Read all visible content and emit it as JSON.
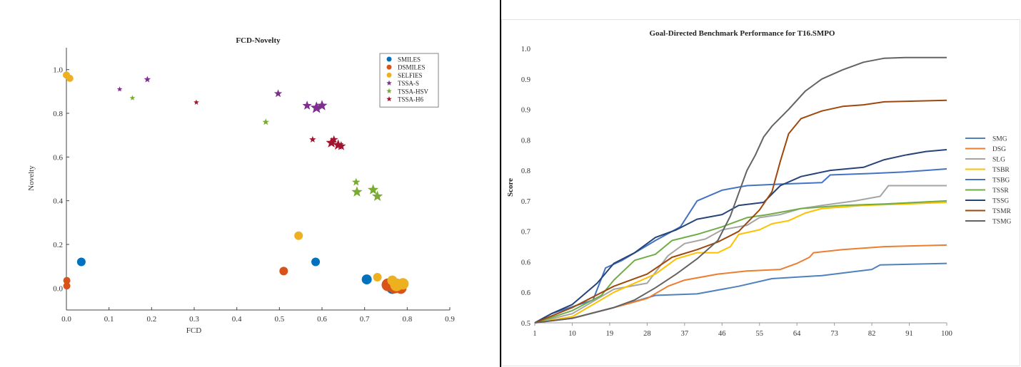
{
  "charts": [
    {
      "type": "scatter",
      "title": "FCD-Novelty",
      "xlabel": "FCD",
      "ylabel": "Novelty",
      "xlim": [
        0,
        0.9
      ],
      "ylim": [
        -0.1,
        1.1
      ],
      "xticks": [
        0,
        0.1,
        0.2,
        0.3,
        0.4,
        0.5,
        0.6,
        0.7,
        0.8,
        0.9
      ],
      "xtick_labels": [
        "0.0",
        "0.1",
        "0.2",
        "0.3",
        "0.4",
        "0.5",
        "0.6",
        "0.7",
        "0.8",
        "0.9"
      ],
      "yticks": [
        0.0,
        0.2,
        0.4,
        0.6,
        0.8,
        1.0
      ],
      "ytick_labels": [
        "0.0",
        "0.2",
        "0.4",
        "0.6",
        "0.8",
        "1.0"
      ],
      "grid": false,
      "legend": "top-right",
      "series": [
        {
          "name": "SMILES",
          "marker": "circle",
          "color": "#0072BD",
          "points": [
            [
              0.035,
              0.12,
              6
            ],
            [
              0.585,
              0.12,
              6
            ],
            [
              0.705,
              0.04,
              7
            ],
            [
              0.765,
              0.0,
              8
            ]
          ]
        },
        {
          "name": "DSMILES",
          "marker": "circle",
          "color": "#D95319",
          "points": [
            [
              0.001,
              0.035,
              5
            ],
            [
              0.001,
              0.01,
              5
            ],
            [
              0.51,
              0.078,
              6
            ],
            [
              0.755,
              0.015,
              9
            ],
            [
              0.77,
              0.005,
              9
            ],
            [
              0.785,
              0.0,
              8
            ]
          ]
        },
        {
          "name": "SELFIES",
          "marker": "circle",
          "color": "#EDB120",
          "points": [
            [
              0.0,
              0.975,
              5
            ],
            [
              0.008,
              0.96,
              5
            ],
            [
              0.545,
              0.24,
              6
            ],
            [
              0.73,
              0.05,
              6
            ],
            [
              0.765,
              0.035,
              7
            ],
            [
              0.775,
              0.015,
              9
            ],
            [
              0.79,
              0.02,
              8
            ]
          ]
        },
        {
          "name": "TSSA-S",
          "marker": "star",
          "color": "#7E2F8E",
          "points": [
            [
              0.125,
              0.91,
              4
            ],
            [
              0.19,
              0.955,
              5
            ],
            [
              0.497,
              0.89,
              6
            ],
            [
              0.565,
              0.835,
              7
            ],
            [
              0.587,
              0.825,
              9
            ],
            [
              0.6,
              0.835,
              8
            ]
          ]
        },
        {
          "name": "TSSA-HSV",
          "marker": "star",
          "color": "#77AC30",
          "points": [
            [
              0.155,
              0.87,
              4
            ],
            [
              0.468,
              0.76,
              5
            ],
            [
              0.68,
              0.485,
              6
            ],
            [
              0.682,
              0.44,
              8
            ],
            [
              0.72,
              0.45,
              8
            ],
            [
              0.73,
              0.42,
              8
            ]
          ]
        },
        {
          "name": "TSSA-H6",
          "marker": "star",
          "color": "#A2142F",
          "points": [
            [
              0.305,
              0.85,
              4
            ],
            [
              0.578,
              0.68,
              5
            ],
            [
              0.622,
              0.665,
              8
            ],
            [
              0.628,
              0.68,
              6
            ],
            [
              0.638,
              0.655,
              8
            ],
            [
              0.645,
              0.65,
              7
            ]
          ]
        }
      ]
    },
    {
      "type": "line",
      "title": "Goal-Directed Benchmark Performance for T16.SMPO",
      "xlabel": "",
      "ylabel": "Score",
      "xlim": [
        1,
        100
      ],
      "xticks": [
        1,
        10,
        19,
        28,
        37,
        46,
        55,
        64,
        73,
        82,
        91,
        100
      ],
      "ytick_labels": [
        "0.5",
        "0.6",
        "0.6",
        "0.7",
        "0.7",
        "0.8",
        "0.8",
        "0.9",
        "0.9",
        "1.0"
      ],
      "ylim": [
        0,
        9
      ],
      "note_y": "y values are expressed in tick-index units of the printed axis (tick 0 = \"0.5\" ... tick 9 = \"1.0\")",
      "grid": false,
      "legend": "right",
      "series": [
        {
          "name": "SMG",
          "color": "#4F81BD",
          "points": [
            [
              1,
              0
            ],
            [
              10,
              0.15
            ],
            [
              20,
              0.5
            ],
            [
              30,
              0.9
            ],
            [
              40,
              0.95
            ],
            [
              50,
              1.2
            ],
            [
              58,
              1.45
            ],
            [
              70,
              1.55
            ],
            [
              82,
              1.75
            ],
            [
              84,
              1.9
            ],
            [
              100,
              1.95
            ]
          ]
        },
        {
          "name": "DSG",
          "color": "#ED7D31",
          "points": [
            [
              1,
              0
            ],
            [
              10,
              0.15
            ],
            [
              20,
              0.5
            ],
            [
              28,
              0.8
            ],
            [
              33,
              1.2
            ],
            [
              37,
              1.4
            ],
            [
              45,
              1.6
            ],
            [
              52,
              1.7
            ],
            [
              60,
              1.75
            ],
            [
              64,
              1.95
            ],
            [
              67,
              2.15
            ],
            [
              68,
              2.3
            ],
            [
              75,
              2.4
            ],
            [
              85,
              2.5
            ],
            [
              100,
              2.55
            ]
          ]
        },
        {
          "name": "SLG",
          "color": "#A5A5A5",
          "points": [
            [
              1,
              0
            ],
            [
              10,
              0.3
            ],
            [
              20,
              1.1
            ],
            [
              28,
              1.3
            ],
            [
              33,
              2.2
            ],
            [
              37,
              2.6
            ],
            [
              42,
              2.75
            ],
            [
              46,
              3.05
            ],
            [
              52,
              3.2
            ],
            [
              55,
              3.45
            ],
            [
              60,
              3.55
            ],
            [
              65,
              3.75
            ],
            [
              70,
              3.85
            ],
            [
              78,
              4.0
            ],
            [
              84,
              4.15
            ],
            [
              86,
              4.5
            ],
            [
              100,
              4.5
            ]
          ]
        },
        {
          "name": "TSBR",
          "color": "#FFC000",
          "points": [
            [
              1,
              0
            ],
            [
              10,
              0.2
            ],
            [
              20,
              1.0
            ],
            [
              30,
              1.6
            ],
            [
              35,
              2.1
            ],
            [
              40,
              2.3
            ],
            [
              45,
              2.3
            ],
            [
              48,
              2.5
            ],
            [
              50,
              2.9
            ],
            [
              55,
              3.05
            ],
            [
              58,
              3.25
            ],
            [
              62,
              3.35
            ],
            [
              66,
              3.6
            ],
            [
              70,
              3.75
            ],
            [
              80,
              3.85
            ],
            [
              90,
              3.9
            ],
            [
              100,
              3.95
            ]
          ]
        },
        {
          "name": "TSBG",
          "color": "#4472C4",
          "points": [
            [
              1,
              0
            ],
            [
              5,
              0.3
            ],
            [
              15,
              0.75
            ],
            [
              18,
              1.8
            ],
            [
              22,
              2.05
            ],
            [
              30,
              2.7
            ],
            [
              36,
              3.15
            ],
            [
              40,
              4.0
            ],
            [
              46,
              4.35
            ],
            [
              52,
              4.5
            ],
            [
              60,
              4.55
            ],
            [
              70,
              4.6
            ],
            [
              72,
              4.85
            ],
            [
              82,
              4.9
            ],
            [
              90,
              4.95
            ],
            [
              95,
              5.0
            ],
            [
              100,
              5.05
            ]
          ]
        },
        {
          "name": "TSSR",
          "color": "#70AD47",
          "points": [
            [
              1,
              0
            ],
            [
              10,
              0.4
            ],
            [
              17,
              0.9
            ],
            [
              20,
              1.4
            ],
            [
              25,
              2.05
            ],
            [
              30,
              2.25
            ],
            [
              34,
              2.7
            ],
            [
              40,
              2.9
            ],
            [
              46,
              3.15
            ],
            [
              52,
              3.45
            ],
            [
              57,
              3.55
            ],
            [
              65,
              3.75
            ],
            [
              75,
              3.85
            ],
            [
              85,
              3.9
            ],
            [
              100,
              4.0
            ]
          ]
        },
        {
          "name": "TSSG",
          "color": "#264478",
          "points": [
            [
              1,
              0
            ],
            [
              5,
              0.3
            ],
            [
              10,
              0.6
            ],
            [
              16,
              1.3
            ],
            [
              20,
              1.95
            ],
            [
              25,
              2.3
            ],
            [
              30,
              2.8
            ],
            [
              35,
              3.05
            ],
            [
              40,
              3.4
            ],
            [
              46,
              3.55
            ],
            [
              50,
              3.85
            ],
            [
              56,
              3.95
            ],
            [
              60,
              4.5
            ],
            [
              65,
              4.8
            ],
            [
              72,
              5.0
            ],
            [
              80,
              5.1
            ],
            [
              85,
              5.35
            ],
            [
              90,
              5.5
            ],
            [
              95,
              5.62
            ],
            [
              100,
              5.68
            ]
          ]
        },
        {
          "name": "TSMR",
          "color": "#9E480E",
          "points": [
            [
              1,
              0
            ],
            [
              10,
              0.5
            ],
            [
              20,
              1.2
            ],
            [
              28,
              1.6
            ],
            [
              34,
              2.15
            ],
            [
              40,
              2.4
            ],
            [
              45,
              2.65
            ],
            [
              50,
              3.0
            ],
            [
              55,
              3.7
            ],
            [
              58,
              4.3
            ],
            [
              60,
              5.3
            ],
            [
              62,
              6.2
            ],
            [
              65,
              6.7
            ],
            [
              70,
              6.95
            ],
            [
              75,
              7.1
            ],
            [
              80,
              7.15
            ],
            [
              85,
              7.25
            ],
            [
              100,
              7.3
            ]
          ]
        },
        {
          "name": "TSMG",
          "color": "#636363",
          "points": [
            [
              1,
              0
            ],
            [
              10,
              0.15
            ],
            [
              20,
              0.5
            ],
            [
              25,
              0.75
            ],
            [
              30,
              1.15
            ],
            [
              35,
              1.6
            ],
            [
              40,
              2.1
            ],
            [
              45,
              2.7
            ],
            [
              48,
              3.5
            ],
            [
              52,
              5.0
            ],
            [
              54,
              5.5
            ],
            [
              56,
              6.1
            ],
            [
              58,
              6.45
            ],
            [
              62,
              7.0
            ],
            [
              66,
              7.6
            ],
            [
              70,
              8.0
            ],
            [
              75,
              8.3
            ],
            [
              80,
              8.55
            ],
            [
              85,
              8.68
            ],
            [
              90,
              8.7
            ],
            [
              100,
              8.7
            ]
          ]
        }
      ]
    }
  ]
}
